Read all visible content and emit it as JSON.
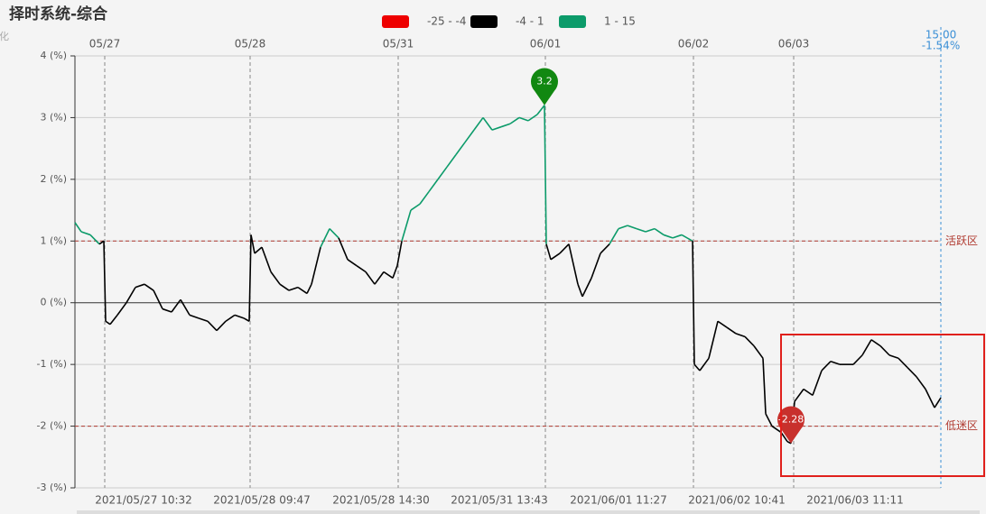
{
  "chart_data": {
    "type": "line",
    "title": "择时系统-综合",
    "subtitle": "变化",
    "x": [
      0,
      7,
      17,
      27,
      32,
      34,
      39,
      47,
      57,
      67,
      77,
      87,
      97,
      107,
      117,
      127,
      137,
      147,
      157,
      167,
      177,
      187,
      193,
      195,
      199,
      207,
      217,
      227,
      237,
      247,
      257,
      262,
      272,
      282,
      292,
      302,
      312,
      322,
      332,
      342,
      352,
      357,
      362,
      372,
      382,
      392,
      402,
      412,
      422,
      432,
      442,
      452,
      462,
      472,
      482,
      492,
      502,
      512,
      520,
      522,
      527,
      537,
      547,
      557,
      562,
      572,
      582,
      592,
      602,
      612,
      622,
      632,
      642,
      652,
      662,
      672,
      684,
      686,
      692,
      702,
      712,
      722,
      732,
      742,
      752,
      762,
      765,
      772,
      782,
      789,
      793,
      797,
      807,
      817,
      827,
      837,
      847,
      862,
      872,
      882,
      892,
      902,
      912,
      922,
      932,
      942,
      952,
      959
    ],
    "series": [
      {
        "values": [
          1.3,
          1.15,
          1.1,
          0.95,
          1.0,
          -0.3,
          -0.35,
          -0.2,
          0.0,
          0.25,
          0.3,
          0.2,
          -0.1,
          -0.15,
          0.05,
          -0.2,
          -0.25,
          -0.3,
          -0.45,
          -0.3,
          -0.2,
          -0.25,
          -0.3,
          1.1,
          0.8,
          0.9,
          0.5,
          0.3,
          0.2,
          0.25,
          0.15,
          0.3,
          0.9,
          1.2,
          1.05,
          0.7,
          0.6,
          0.5,
          0.3,
          0.5,
          0.4,
          0.6,
          1.0,
          1.5,
          1.6,
          1.8,
          2.0,
          2.2,
          2.4,
          2.6,
          2.8,
          3.0,
          2.8,
          2.85,
          2.9,
          3.0,
          2.95,
          3.05,
          3.2,
          0.95,
          0.7,
          0.8,
          0.95,
          0.3,
          0.1,
          0.4,
          0.8,
          0.95,
          1.2,
          1.25,
          1.2,
          1.15,
          1.2,
          1.1,
          1.05,
          1.1,
          1.0,
          -1.0,
          -1.1,
          -0.9,
          -0.3,
          -0.4,
          -0.5,
          -0.55,
          -0.7,
          -0.9,
          -1.8,
          -2.0,
          -2.1,
          -2.25,
          -2.28,
          -1.6,
          -1.4,
          -1.5,
          -1.1,
          -0.95,
          -1.0,
          -1.0,
          -0.85,
          -0.6,
          -0.7,
          -0.85,
          -0.9,
          -1.05,
          -1.2,
          -1.4,
          -1.7,
          -1.54
        ]
      }
    ],
    "visual_map": [
      {
        "min": -25,
        "max": -4,
        "label": "-25 - -4",
        "color": "#ee0000"
      },
      {
        "min": -4,
        "max": 1,
        "label": "-4 - 1",
        "color": "#000000"
      },
      {
        "min": 1,
        "max": 15,
        "label": "1 - 15",
        "color": "#0c9b6a"
      }
    ],
    "xlim": [
      0,
      959
    ],
    "ylim": [
      -3,
      4
    ],
    "yticks": [
      {
        "value": 4,
        "label": "4 (%)"
      },
      {
        "value": 3,
        "label": "3 (%)"
      },
      {
        "value": 2,
        "label": "2 (%)"
      },
      {
        "value": 1,
        "label": "1 (%)"
      },
      {
        "value": 0,
        "label": "0 (%)"
      },
      {
        "value": -1,
        "label": "-1 (%)"
      },
      {
        "value": -2,
        "label": "-2 (%)"
      },
      {
        "value": -3,
        "label": "-3 (%)"
      }
    ],
    "day_ticks": [
      {
        "value": 33,
        "label": "05/27"
      },
      {
        "value": 194,
        "label": "05/28"
      },
      {
        "value": 358,
        "label": "05/31"
      },
      {
        "value": 521,
        "label": "06/01"
      },
      {
        "value": 685,
        "label": "06/02"
      },
      {
        "value": 796,
        "label": "06/03"
      }
    ],
    "xticks": [
      {
        "value": 76,
        "label": "2021/05/27 10:32"
      },
      {
        "value": 207,
        "label": "2021/05/28 09:47"
      },
      {
        "value": 339,
        "label": "2021/05/28 14:30"
      },
      {
        "value": 470,
        "label": "2021/05/31 13:43"
      },
      {
        "value": 602,
        "label": "2021/06/01 11:27"
      },
      {
        "value": 733,
        "label": "2021/06/02 10:41"
      },
      {
        "value": 864,
        "label": "2021/06/03 11:11"
      }
    ],
    "mark_lines": [
      {
        "value": 1,
        "label": "活跃区"
      },
      {
        "value": -2,
        "label": "低迷区"
      }
    ],
    "markers": [
      {
        "x": 520,
        "value": 3.2,
        "label": "3.2",
        "color": "#118811"
      },
      {
        "x": 793,
        "value": -2.28,
        "label": "-2.28",
        "color": "#c8302c"
      }
    ],
    "end_label": {
      "x": 959,
      "time": "15:00",
      "value": -1.54,
      "label": "-1.54%"
    },
    "grid": true
  }
}
